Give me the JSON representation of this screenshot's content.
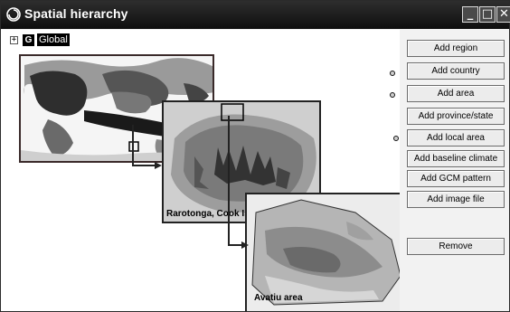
{
  "window": {
    "title": "Spatial hierarchy",
    "icon": "app-swirl-icon",
    "controls": [
      "minimize-icon",
      "maximize-icon",
      "close-icon"
    ]
  },
  "tree": {
    "expander": "+",
    "node_icon_letter": "G",
    "root_label": "Global"
  },
  "maps": {
    "rarotonga_caption": "Rarotonga, Cook Is",
    "avatiu_caption": "Avatiu area"
  },
  "buttons": {
    "add_region": "Add region",
    "add_country": "Add country",
    "add_area": "Add area",
    "add_province_state": "Add province/state",
    "add_local_area": "Add local area",
    "add_baseline_climate": "Add baseline climate",
    "add_gcm_pattern": "Add GCM pattern",
    "add_image_file": "Add image file",
    "remove": "Remove"
  },
  "colors": {
    "titlebar": "#111111",
    "selected_bg": "#000000"
  }
}
